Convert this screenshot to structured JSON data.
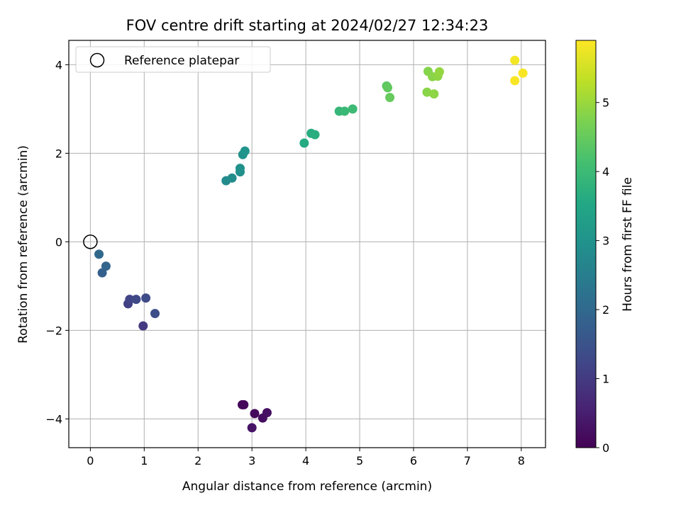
{
  "chart_data": {
    "type": "scatter",
    "title": "FOV centre drift starting at 2024/02/27 12:34:23",
    "xlabel": "Angular distance from reference (arcmin)",
    "ylabel": "Rotation from reference (arcmin)",
    "xlim": [
      -0.4,
      8.45
    ],
    "ylim": [
      -4.65,
      4.55
    ],
    "xticks": [
      "0",
      "1",
      "2",
      "3",
      "4",
      "5",
      "6",
      "7",
      "8"
    ],
    "yticks": [
      "−4",
      "−2",
      "0",
      "2",
      "4"
    ],
    "grid": true,
    "legend": {
      "placement": "top-left",
      "entries": [
        "Reference platepar"
      ]
    },
    "reference_point": {
      "x": 0,
      "y": 0
    },
    "colorbar": {
      "label": "Hours from first FF file",
      "range": [
        0,
        5.9
      ],
      "ticks": [
        "0",
        "1",
        "2",
        "3",
        "4",
        "5"
      ],
      "colormap": "viridis"
    },
    "points": [
      {
        "x": 2.82,
        "y": -3.68,
        "c": 0.05
      },
      {
        "x": 2.85,
        "y": -3.68,
        "c": 0.1
      },
      {
        "x": 3.05,
        "y": -3.88,
        "c": 0.15
      },
      {
        "x": 3.2,
        "y": -3.98,
        "c": 0.2
      },
      {
        "x": 3.28,
        "y": -3.86,
        "c": 0.25
      },
      {
        "x": 3.0,
        "y": -4.2,
        "c": 0.3
      },
      {
        "x": 0.98,
        "y": -1.9,
        "c": 1.0
      },
      {
        "x": 0.7,
        "y": -1.4,
        "c": 1.1
      },
      {
        "x": 0.73,
        "y": -1.3,
        "c": 1.2
      },
      {
        "x": 0.85,
        "y": -1.3,
        "c": 1.3
      },
      {
        "x": 1.03,
        "y": -1.27,
        "c": 1.35
      },
      {
        "x": 1.2,
        "y": -1.62,
        "c": 1.4
      },
      {
        "x": 0.22,
        "y": -0.7,
        "c": 1.8
      },
      {
        "x": 0.29,
        "y": -0.55,
        "c": 1.9
      },
      {
        "x": 0.16,
        "y": -0.28,
        "c": 2.0
      },
      {
        "x": 2.52,
        "y": 1.38,
        "c": 2.8
      },
      {
        "x": 2.63,
        "y": 1.44,
        "c": 2.85
      },
      {
        "x": 2.78,
        "y": 1.58,
        "c": 2.9
      },
      {
        "x": 2.78,
        "y": 1.66,
        "c": 2.95
      },
      {
        "x": 2.83,
        "y": 1.97,
        "c": 3.0
      },
      {
        "x": 2.87,
        "y": 2.05,
        "c": 3.05
      },
      {
        "x": 3.97,
        "y": 2.23,
        "c": 3.6
      },
      {
        "x": 4.1,
        "y": 2.45,
        "c": 3.65
      },
      {
        "x": 4.17,
        "y": 2.42,
        "c": 3.7
      },
      {
        "x": 4.62,
        "y": 2.95,
        "c": 3.9
      },
      {
        "x": 4.72,
        "y": 2.95,
        "c": 3.95
      },
      {
        "x": 4.87,
        "y": 3.0,
        "c": 4.0
      },
      {
        "x": 5.5,
        "y": 3.52,
        "c": 4.4
      },
      {
        "x": 5.52,
        "y": 3.48,
        "c": 4.45
      },
      {
        "x": 5.56,
        "y": 3.26,
        "c": 4.5
      },
      {
        "x": 6.27,
        "y": 3.85,
        "c": 4.8
      },
      {
        "x": 6.35,
        "y": 3.73,
        "c": 4.85
      },
      {
        "x": 6.45,
        "y": 3.74,
        "c": 4.9
      },
      {
        "x": 6.48,
        "y": 3.84,
        "c": 4.95
      },
      {
        "x": 6.25,
        "y": 3.38,
        "c": 4.85
      },
      {
        "x": 6.38,
        "y": 3.34,
        "c": 4.9
      },
      {
        "x": 7.88,
        "y": 4.1,
        "c": 5.8
      },
      {
        "x": 8.03,
        "y": 3.81,
        "c": 5.85
      },
      {
        "x": 7.88,
        "y": 3.64,
        "c": 5.85
      }
    ]
  }
}
